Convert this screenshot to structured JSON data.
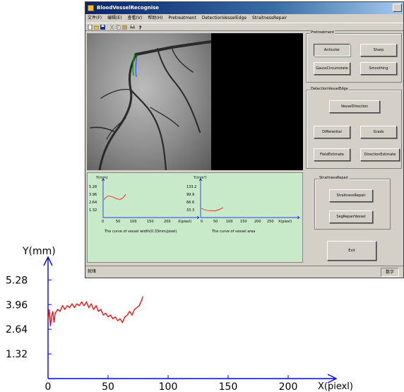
{
  "window": {
    "title": "BloodVesselRecognise",
    "menu": [
      "文件(F)",
      "编辑(E)",
      "查看(V)",
      "帮助(H)",
      "Pretreatment",
      "DetectionVesselEdge",
      "StraitnessRepair"
    ],
    "toolbar_icons": [
      "new-file-icon",
      "open-folder-icon",
      "save-icon",
      "cut-icon",
      "copy-icon",
      "paste-icon",
      "print-icon",
      "help-icon"
    ]
  },
  "pretreatment": {
    "title": "Pretreatment",
    "buttons": [
      "Anticolor",
      "Sharp",
      "GaussCircumstate",
      "Smoothing"
    ]
  },
  "detection": {
    "title": "DetectionVesselEdge",
    "buttons": [
      "VesselDirection",
      "Differential",
      "Grads",
      "FieldEstimate",
      "DirectionEstimate"
    ]
  },
  "straitness": {
    "title": "StraitnessRepair",
    "buttons": [
      "StraitnessRepair",
      "SegRepairVessel"
    ]
  },
  "exit_label": "Exit",
  "status": {
    "left": "就绪",
    "right": "数字"
  },
  "small_charts": {
    "width": {
      "ylabel": "Y(mm)",
      "yticks": [
        "5.28",
        "3.96",
        "2.64",
        "1.32"
      ],
      "xticks": [
        "0",
        "50",
        "100",
        "150",
        "200"
      ],
      "xlabel": "X(piexl)",
      "caption": "The curve of vessel width(0.33mm/pixel)"
    },
    "area": {
      "ylabel": "Y(mm²)",
      "yticks": [
        "133.2",
        "99.9",
        "66.6",
        "33.3"
      ],
      "xticks": [
        "0",
        "50",
        "100",
        "150",
        "200",
        "250"
      ],
      "xlabel": "X(piexl)",
      "caption": "The curve of vessel area"
    }
  },
  "chart_data": {
    "type": "line",
    "ylabel": "Y(mm)",
    "xlabel": "X(piexl)",
    "xlim": [
      0,
      240
    ],
    "ylim": [
      0,
      6.2
    ],
    "xticks": [
      "0",
      "50",
      "100",
      "150",
      "200"
    ],
    "yticks": [
      "5.28",
      "3.96",
      "2.64",
      "1.32"
    ],
    "line_color": "#ff0000",
    "series": [
      {
        "x": [
          0,
          1,
          2,
          3,
          4,
          5,
          6,
          8,
          10,
          12,
          14,
          16,
          18,
          20,
          22,
          24,
          26,
          28,
          30,
          32,
          34,
          36,
          38,
          40,
          42,
          44,
          46,
          48,
          50,
          52,
          54,
          56,
          58,
          60,
          62,
          64,
          66,
          68,
          70,
          72,
          74,
          76,
          78,
          79
        ],
        "y": [
          3.2,
          3.7,
          2.8,
          3.3,
          3.6,
          3.0,
          3.5,
          3.7,
          3.6,
          3.9,
          3.7,
          3.9,
          3.8,
          4.0,
          3.8,
          4.0,
          3.9,
          4.1,
          3.9,
          4.1,
          3.8,
          4.0,
          3.7,
          3.9,
          3.6,
          3.7,
          3.4,
          3.5,
          3.3,
          3.4,
          3.2,
          3.3,
          3.1,
          3.2,
          3.0,
          3.3,
          3.4,
          3.6,
          3.4,
          3.7,
          3.8,
          3.9,
          4.2,
          4.4
        ]
      }
    ]
  },
  "colors": {
    "titlebar": "#0a246a",
    "graph_panel": "#c8eac8",
    "curve": "#ff0000",
    "axis": "#0000ff"
  }
}
